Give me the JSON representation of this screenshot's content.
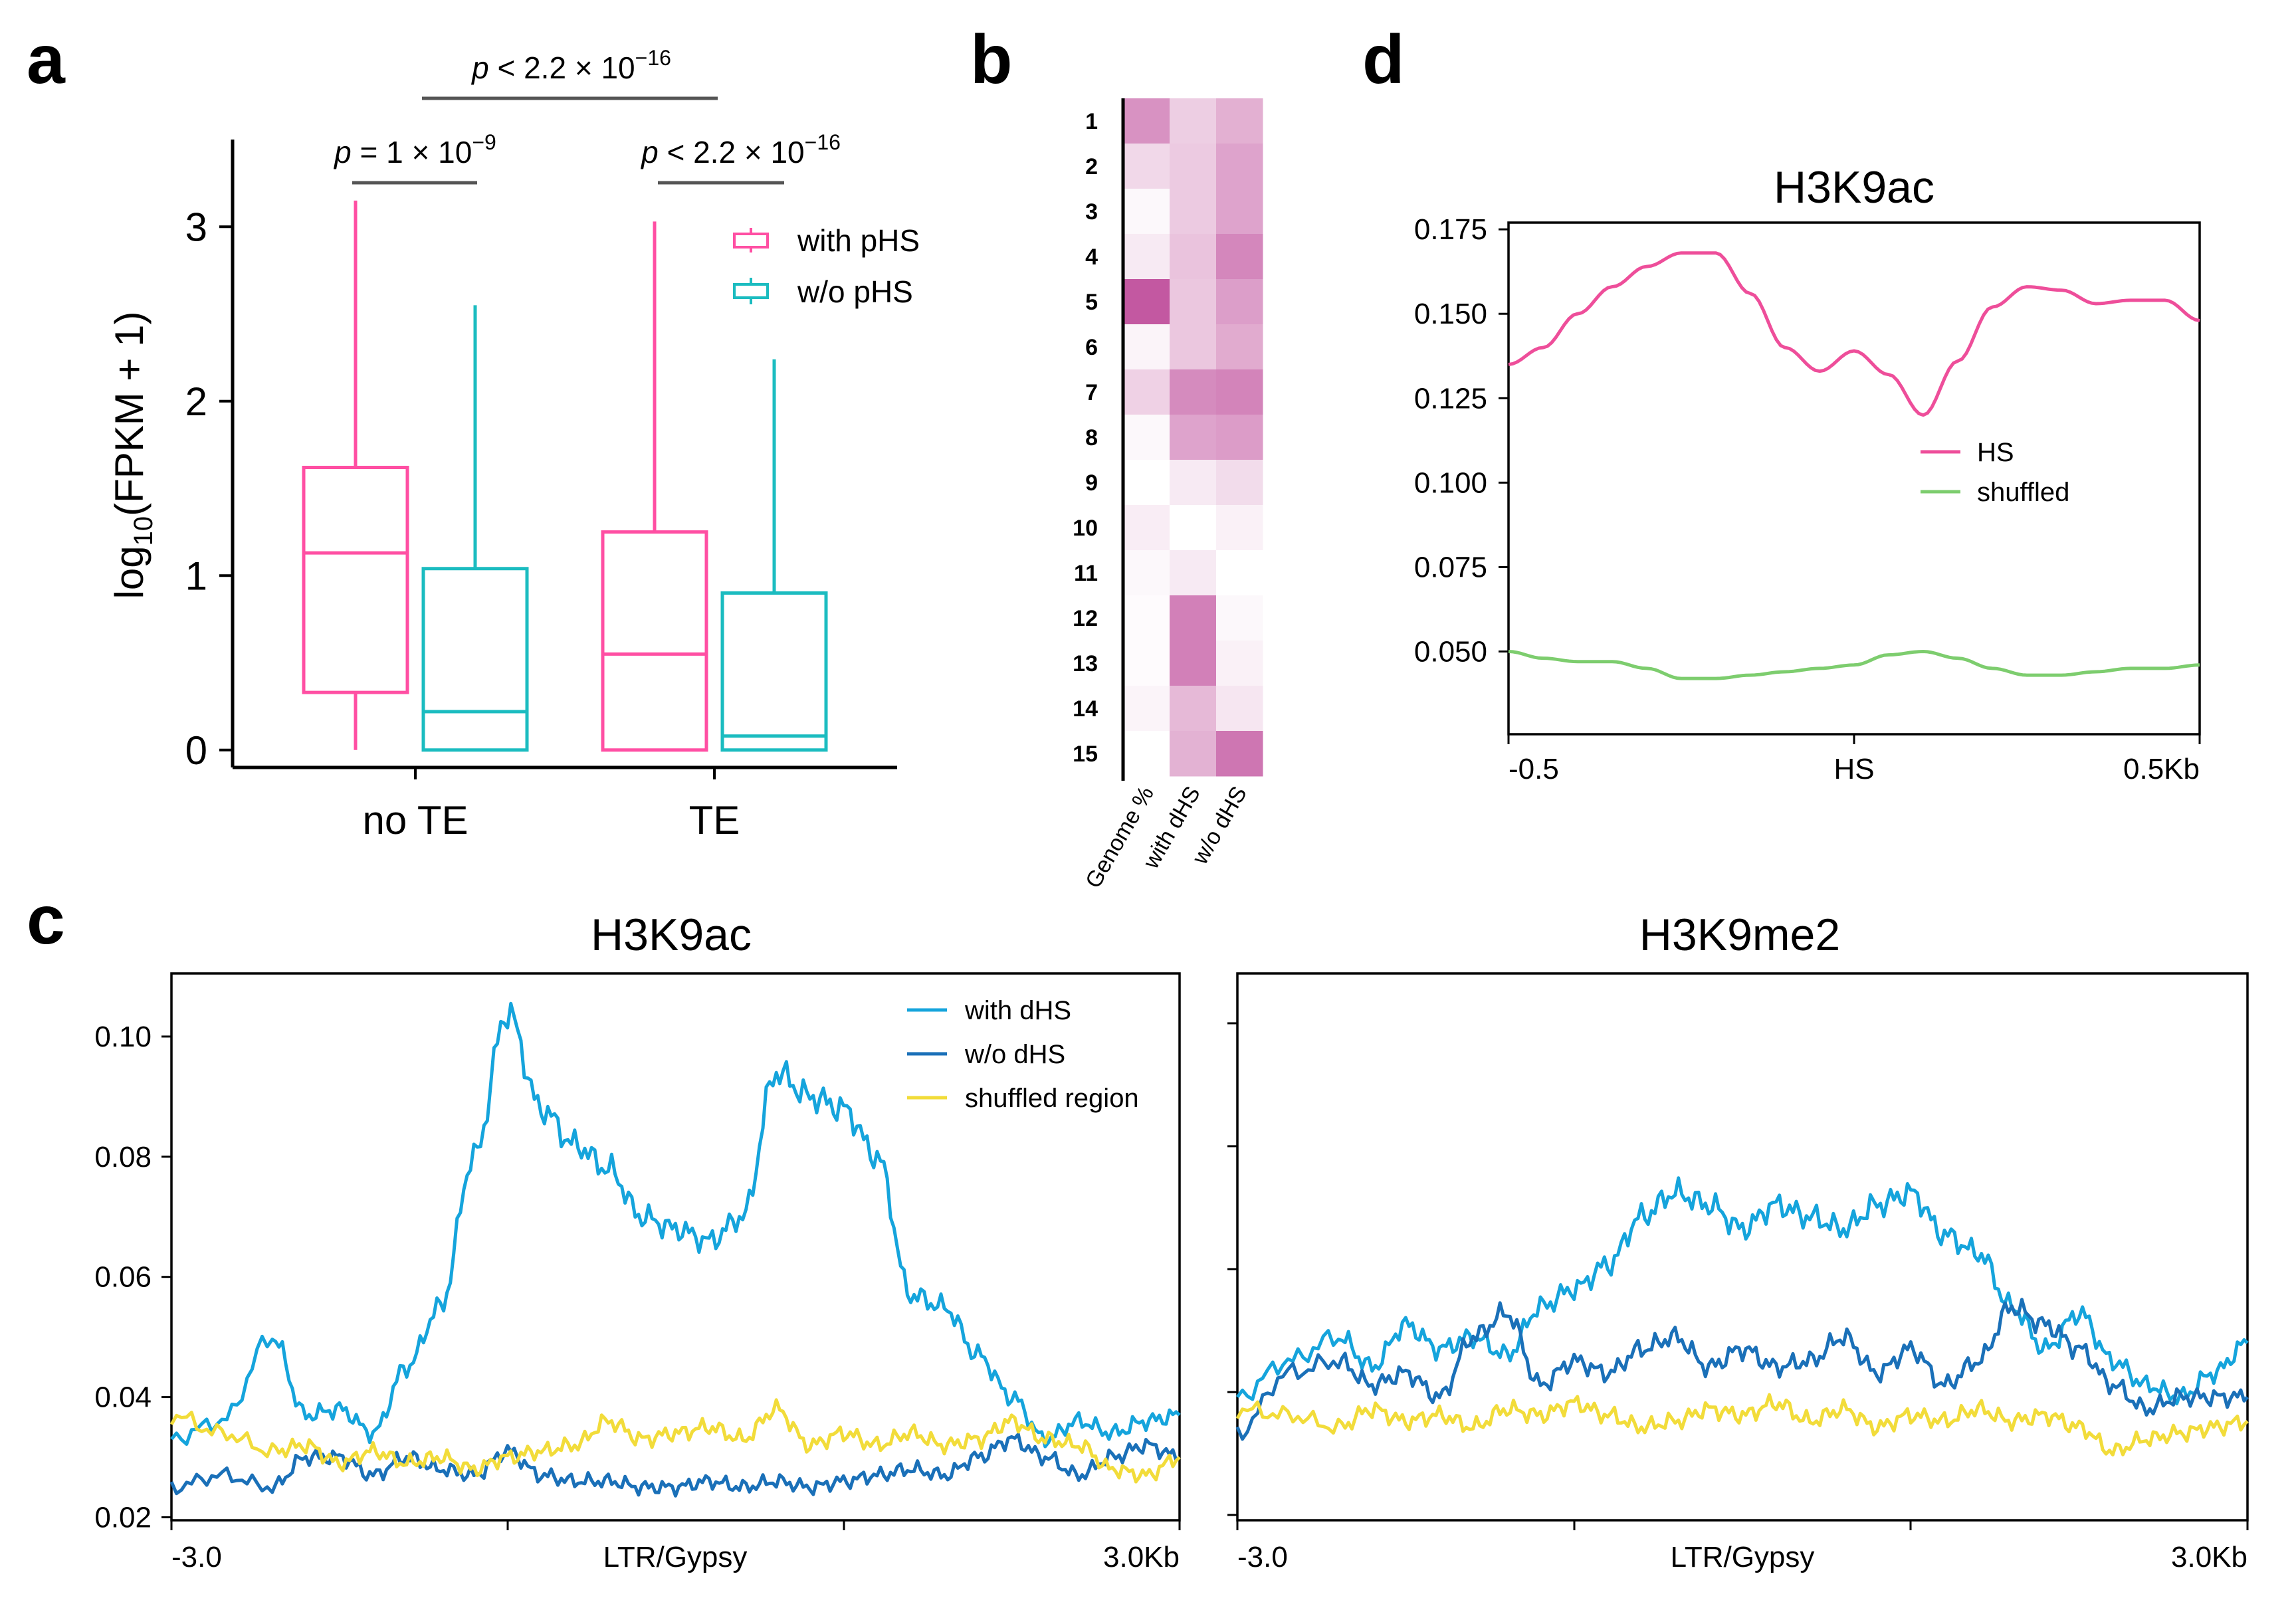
{
  "panels": {
    "a": "a",
    "b": "b",
    "c": "c",
    "d": "d"
  },
  "colors": {
    "pink": "#ff4fa3",
    "teal": "#1bbcc0",
    "with_dhs": "#15a4dc",
    "wo_dhs": "#1a70b8",
    "shuffled_region": "#f2dc3a",
    "hs_line": "#ee4e9a",
    "shuffled_green": "#7dcd6e",
    "heat_max": "#c04f9c"
  },
  "chart_data": [
    {
      "id": "a",
      "type": "box",
      "ylabel_main": "log",
      "ylabel_sub": "10",
      "ylabel_rest": "(FPKM + 1)",
      "ylim": [
        -0.1,
        3.5
      ],
      "yticks": [
        "0",
        "1",
        "2",
        "3"
      ],
      "categories": [
        "no TE",
        "TE"
      ],
      "legend": [
        "with pHS",
        "w/o pHS"
      ],
      "boxes": [
        {
          "category": "no TE",
          "series": "with pHS",
          "min": 0.0,
          "q1": 0.33,
          "median": 1.13,
          "q3": 1.62,
          "max": 3.15
        },
        {
          "category": "no TE",
          "series": "w/o pHS",
          "min": 0.0,
          "q1": 0.0,
          "median": 0.22,
          "q3": 1.04,
          "max": 2.55
        },
        {
          "category": "TE",
          "series": "with pHS",
          "min": 0.0,
          "q1": 0.0,
          "median": 0.55,
          "q3": 1.25,
          "max": 3.03
        },
        {
          "category": "TE",
          "series": "w/o pHS",
          "min": 0.0,
          "q1": 0.0,
          "median": 0.08,
          "q3": 0.9,
          "max": 2.24
        }
      ],
      "comparisons": [
        {
          "label_p": "p",
          "label_rest": " = 1 × 10",
          "label_exp": "−9"
        },
        {
          "label_p": "p",
          "label_rest": " < 2.2 × 10",
          "label_exp": "−16"
        },
        {
          "label_p": "p",
          "label_rest": " < 2.2 × 10",
          "label_exp": "−16"
        }
      ]
    },
    {
      "id": "b",
      "type": "heatmap",
      "rows": [
        "1",
        "2",
        "3",
        "4",
        "5",
        "6",
        "7",
        "8",
        "9",
        "10",
        "11",
        "12",
        "13",
        "14",
        "15"
      ],
      "columns": [
        "Genome %",
        "with dHS",
        "w/o dHS"
      ],
      "values": [
        [
          0.62,
          0.28,
          0.45
        ],
        [
          0.22,
          0.3,
          0.52
        ],
        [
          0.04,
          0.3,
          0.52
        ],
        [
          0.12,
          0.34,
          0.68
        ],
        [
          0.95,
          0.32,
          0.55
        ],
        [
          0.06,
          0.32,
          0.48
        ],
        [
          0.26,
          0.66,
          0.7
        ],
        [
          0.04,
          0.52,
          0.56
        ],
        [
          0.0,
          0.12,
          0.2
        ],
        [
          0.1,
          0.0,
          0.08
        ],
        [
          0.04,
          0.12,
          0.0
        ],
        [
          0.02,
          0.72,
          0.04
        ],
        [
          0.02,
          0.72,
          0.08
        ],
        [
          0.06,
          0.4,
          0.14
        ],
        [
          0.0,
          0.44,
          0.78
        ]
      ]
    },
    {
      "id": "c1",
      "type": "line",
      "title": "H3K9ac",
      "xlim": [
        -3,
        3
      ],
      "ylim": [
        0.0195,
        0.1105
      ],
      "xtick_left": "-3.0",
      "xtick_center": "LTR/Gypsy",
      "xtick_right": "3.0Kb",
      "yticks": [
        "0.02",
        "0.04",
        "0.06",
        "0.08",
        "0.10"
      ],
      "legend": [
        "with dHS",
        "w/o dHS",
        "shuffled region"
      ],
      "series": [
        {
          "name": "with dHS",
          "x": [
            -3.0,
            -2.7,
            -2.4,
            -2.2,
            -2.0,
            -1.8,
            -1.6,
            -1.4,
            -1.2,
            -1.0,
            -0.8,
            -0.6,
            -0.4,
            -0.2,
            0.0,
            0.2,
            0.4,
            0.6,
            0.8,
            1.0,
            1.2,
            1.4,
            1.6,
            1.8,
            2.0,
            2.2,
            2.4,
            2.6,
            2.8,
            3.0
          ],
          "y": [
            0.033,
            0.036,
            0.05,
            0.037,
            0.038,
            0.034,
            0.045,
            0.055,
            0.08,
            0.104,
            0.088,
            0.082,
            0.078,
            0.07,
            0.068,
            0.066,
            0.07,
            0.094,
            0.09,
            0.088,
            0.08,
            0.057,
            0.055,
            0.047,
            0.04,
            0.033,
            0.036,
            0.034,
            0.036,
            0.037
          ]
        },
        {
          "name": "w/o dHS",
          "x": [
            -3.0,
            -2.7,
            -2.4,
            -2.2,
            -2.0,
            -1.8,
            -1.6,
            -1.4,
            -1.2,
            -1.0,
            -0.8,
            -0.6,
            -0.4,
            -0.2,
            0.0,
            0.2,
            0.4,
            0.6,
            0.8,
            1.0,
            1.2,
            1.4,
            1.6,
            1.8,
            2.0,
            2.2,
            2.4,
            2.6,
            2.8,
            3.0
          ],
          "y": [
            0.025,
            0.027,
            0.025,
            0.03,
            0.03,
            0.027,
            0.03,
            0.028,
            0.027,
            0.031,
            0.027,
            0.026,
            0.026,
            0.025,
            0.025,
            0.026,
            0.025,
            0.026,
            0.025,
            0.026,
            0.027,
            0.028,
            0.027,
            0.03,
            0.033,
            0.03,
            0.027,
            0.03,
            0.032,
            0.03
          ]
        },
        {
          "name": "shuffled region",
          "x": [
            -3.0,
            -2.7,
            -2.4,
            -2.2,
            -2.0,
            -1.8,
            -1.6,
            -1.4,
            -1.2,
            -1.0,
            -0.8,
            -0.6,
            -0.4,
            -0.2,
            0.0,
            0.2,
            0.4,
            0.6,
            0.8,
            1.0,
            1.2,
            1.4,
            1.6,
            1.8,
            2.0,
            2.2,
            2.4,
            2.6,
            2.8,
            3.0
          ],
          "y": [
            0.037,
            0.034,
            0.031,
            0.032,
            0.029,
            0.031,
            0.029,
            0.03,
            0.028,
            0.03,
            0.031,
            0.032,
            0.036,
            0.033,
            0.034,
            0.035,
            0.033,
            0.038,
            0.032,
            0.034,
            0.032,
            0.034,
            0.032,
            0.033,
            0.036,
            0.033,
            0.032,
            0.028,
            0.027,
            0.03
          ]
        }
      ]
    },
    {
      "id": "c2",
      "type": "line",
      "title": "H3K9me2",
      "xlim": [
        -3,
        3
      ],
      "ylim": [
        0.0195,
        0.1105
      ],
      "xtick_left": "-3.0",
      "xtick_center": "LTR/Gypsy",
      "xtick_right": "3.0Kb",
      "series": [
        {
          "name": "with dHS",
          "x": [
            -3.0,
            -2.7,
            -2.4,
            -2.2,
            -2.0,
            -1.8,
            -1.6,
            -1.4,
            -1.2,
            -1.0,
            -0.8,
            -0.6,
            -0.4,
            -0.2,
            0.0,
            0.2,
            0.4,
            0.6,
            0.8,
            1.0,
            1.2,
            1.4,
            1.6,
            1.8,
            2.0,
            2.2,
            2.4,
            2.6,
            2.8,
            3.0
          ],
          "y": [
            0.04,
            0.046,
            0.05,
            0.045,
            0.052,
            0.048,
            0.05,
            0.047,
            0.055,
            0.058,
            0.062,
            0.07,
            0.074,
            0.072,
            0.068,
            0.072,
            0.07,
            0.068,
            0.072,
            0.074,
            0.067,
            0.064,
            0.055,
            0.048,
            0.054,
            0.046,
            0.042,
            0.04,
            0.044,
            0.049
          ]
        },
        {
          "name": "w/o dHS",
          "x": [
            -3.0,
            -2.7,
            -2.4,
            -2.2,
            -2.0,
            -1.8,
            -1.6,
            -1.4,
            -1.2,
            -1.0,
            -0.8,
            -0.6,
            -0.4,
            -0.2,
            0.0,
            0.2,
            0.4,
            0.6,
            0.8,
            1.0,
            1.2,
            1.4,
            1.6,
            1.8,
            2.0,
            2.2,
            2.4,
            2.6,
            2.8,
            3.0
          ],
          "y": [
            0.034,
            0.044,
            0.046,
            0.042,
            0.044,
            0.04,
            0.05,
            0.054,
            0.042,
            0.046,
            0.044,
            0.048,
            0.05,
            0.045,
            0.048,
            0.045,
            0.046,
            0.05,
            0.044,
            0.048,
            0.042,
            0.046,
            0.055,
            0.052,
            0.048,
            0.042,
            0.038,
            0.04,
            0.04,
            0.04
          ]
        },
        {
          "name": "shuffled region",
          "x": [
            -3.0,
            -2.7,
            -2.4,
            -2.2,
            -2.0,
            -1.8,
            -1.6,
            -1.4,
            -1.2,
            -1.0,
            -0.8,
            -0.6,
            -0.4,
            -0.2,
            0.0,
            0.2,
            0.4,
            0.6,
            0.8,
            1.0,
            1.2,
            1.4,
            1.6,
            1.8,
            2.0,
            2.2,
            2.4,
            2.6,
            2.8,
            3.0
          ],
          "y": [
            0.038,
            0.037,
            0.035,
            0.038,
            0.036,
            0.037,
            0.035,
            0.038,
            0.037,
            0.039,
            0.037,
            0.035,
            0.036,
            0.038,
            0.037,
            0.039,
            0.036,
            0.038,
            0.035,
            0.037,
            0.036,
            0.038,
            0.036,
            0.037,
            0.035,
            0.031,
            0.033,
            0.034,
            0.035,
            0.036
          ]
        }
      ]
    },
    {
      "id": "d",
      "type": "line",
      "title": "H3K9ac",
      "xlim": [
        -0.5,
        0.5
      ],
      "ylim": [
        0.0255,
        0.177
      ],
      "xtick_left": "-0.5",
      "xtick_center": "HS",
      "xtick_right": "0.5Kb",
      "yticks": [
        "0.050",
        "0.075",
        "0.100",
        "0.125",
        "0.150",
        "0.175"
      ],
      "legend": [
        "HS",
        "shuffled"
      ],
      "series": [
        {
          "name": "HS",
          "x": [
            -0.5,
            -0.45,
            -0.4,
            -0.35,
            -0.3,
            -0.25,
            -0.2,
            -0.15,
            -0.1,
            -0.05,
            0.0,
            0.05,
            0.1,
            0.15,
            0.2,
            0.25,
            0.3,
            0.35,
            0.4,
            0.45,
            0.5
          ],
          "y": [
            0.135,
            0.14,
            0.15,
            0.158,
            0.164,
            0.168,
            0.168,
            0.156,
            0.14,
            0.133,
            0.139,
            0.132,
            0.12,
            0.136,
            0.152,
            0.158,
            0.157,
            0.153,
            0.154,
            0.154,
            0.148
          ]
        },
        {
          "name": "shuffled",
          "x": [
            -0.5,
            -0.45,
            -0.4,
            -0.35,
            -0.3,
            -0.25,
            -0.2,
            -0.15,
            -0.1,
            -0.05,
            0.0,
            0.05,
            0.1,
            0.15,
            0.2,
            0.25,
            0.3,
            0.35,
            0.4,
            0.45,
            0.5
          ],
          "y": [
            0.05,
            0.048,
            0.047,
            0.047,
            0.045,
            0.042,
            0.042,
            0.043,
            0.044,
            0.045,
            0.046,
            0.049,
            0.05,
            0.048,
            0.045,
            0.043,
            0.043,
            0.044,
            0.045,
            0.045,
            0.046
          ]
        }
      ]
    }
  ]
}
